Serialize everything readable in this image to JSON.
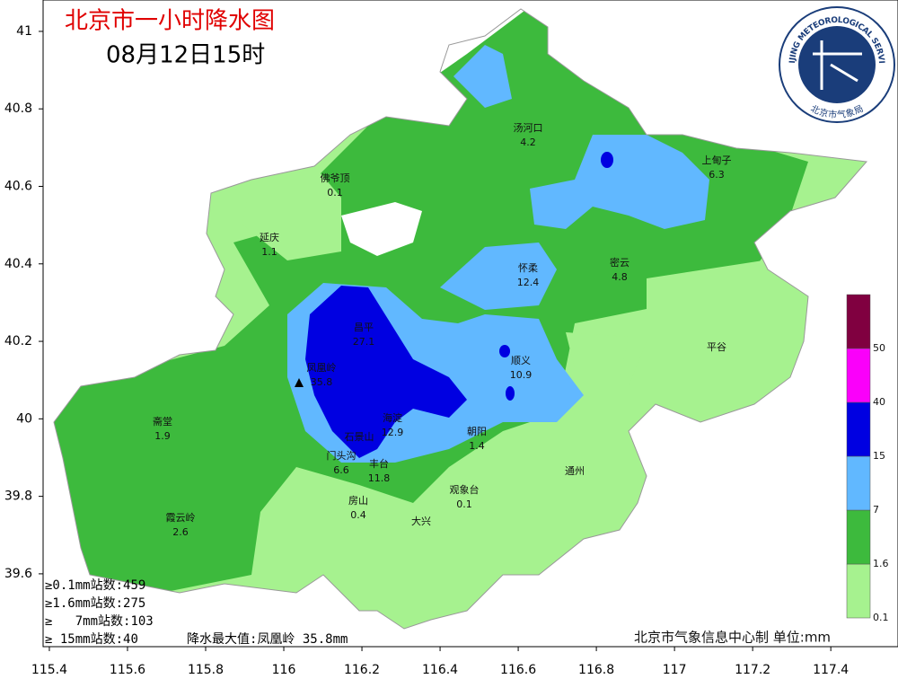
{
  "title": "北京市一小时降水图",
  "subtitle": "08月12日15时",
  "logo": {
    "ring_text": "BEIJING METEOROLOGICAL SERVICE",
    "name": "北京市气象局"
  },
  "axes": {
    "xlim": [
      115.384,
      117.572
    ],
    "ylim": [
      39.412,
      41.081
    ],
    "xticks": [
      115.4,
      115.6,
      115.8,
      116,
      116.2,
      116.4,
      116.6,
      116.8,
      117,
      117.2,
      117.4
    ],
    "yticks": [
      39.6,
      39.8,
      40,
      40.2,
      40.4,
      40.6,
      40.8,
      41
    ]
  },
  "stations": [
    {
      "name": "汤河口",
      "value": 4.2
    },
    {
      "name": "上甸子",
      "value": 6.3
    },
    {
      "name": "佛爷顶",
      "value": 0.1
    },
    {
      "name": "延庆",
      "value": 1.1
    },
    {
      "name": "怀柔",
      "value": 12.4
    },
    {
      "name": "密云",
      "value": 4.8
    },
    {
      "name": "昌平",
      "value": 27.1
    },
    {
      "name": "平谷"
    },
    {
      "name": "顺义",
      "value": 10.9
    },
    {
      "name": "凤凰岭",
      "value": 35.8
    },
    {
      "name": "海淀",
      "value": 12.9
    },
    {
      "name": "朝阳",
      "value": 1.4
    },
    {
      "name": "斋堂",
      "value": 1.9
    },
    {
      "name": "石景山"
    },
    {
      "name": "门头沟",
      "value": 6.6
    },
    {
      "name": "丰台",
      "value": 11.8
    },
    {
      "name": "通州"
    },
    {
      "name": "观象台",
      "value": 0.1
    },
    {
      "name": "房山",
      "value": 0.4
    },
    {
      "name": "大兴"
    },
    {
      "name": "霞云岭",
      "value": 2.6
    }
  ],
  "legend": {
    "levels": [
      0.1,
      1.6,
      7,
      15,
      40,
      50
    ],
    "colors": [
      "#a6f28f",
      "#3dba3d",
      "#61b8ff",
      "#0000e1",
      "#fa00fa",
      "#800040"
    ]
  },
  "stats": [
    {
      "label": "≥0.1mm站数:",
      "count": 459
    },
    {
      "label": "≥1.6mm站数:",
      "count": 275
    },
    {
      "label": "≥   7mm站数:",
      "count": 103
    },
    {
      "label": "≥ 15mm站数:",
      "count": 40
    }
  ],
  "max": {
    "label": "降水最大值:",
    "station": "凤凰岭",
    "value": 35.8,
    "unit": "mm"
  },
  "credit": "北京市气象信息中心制 单位:mm"
}
